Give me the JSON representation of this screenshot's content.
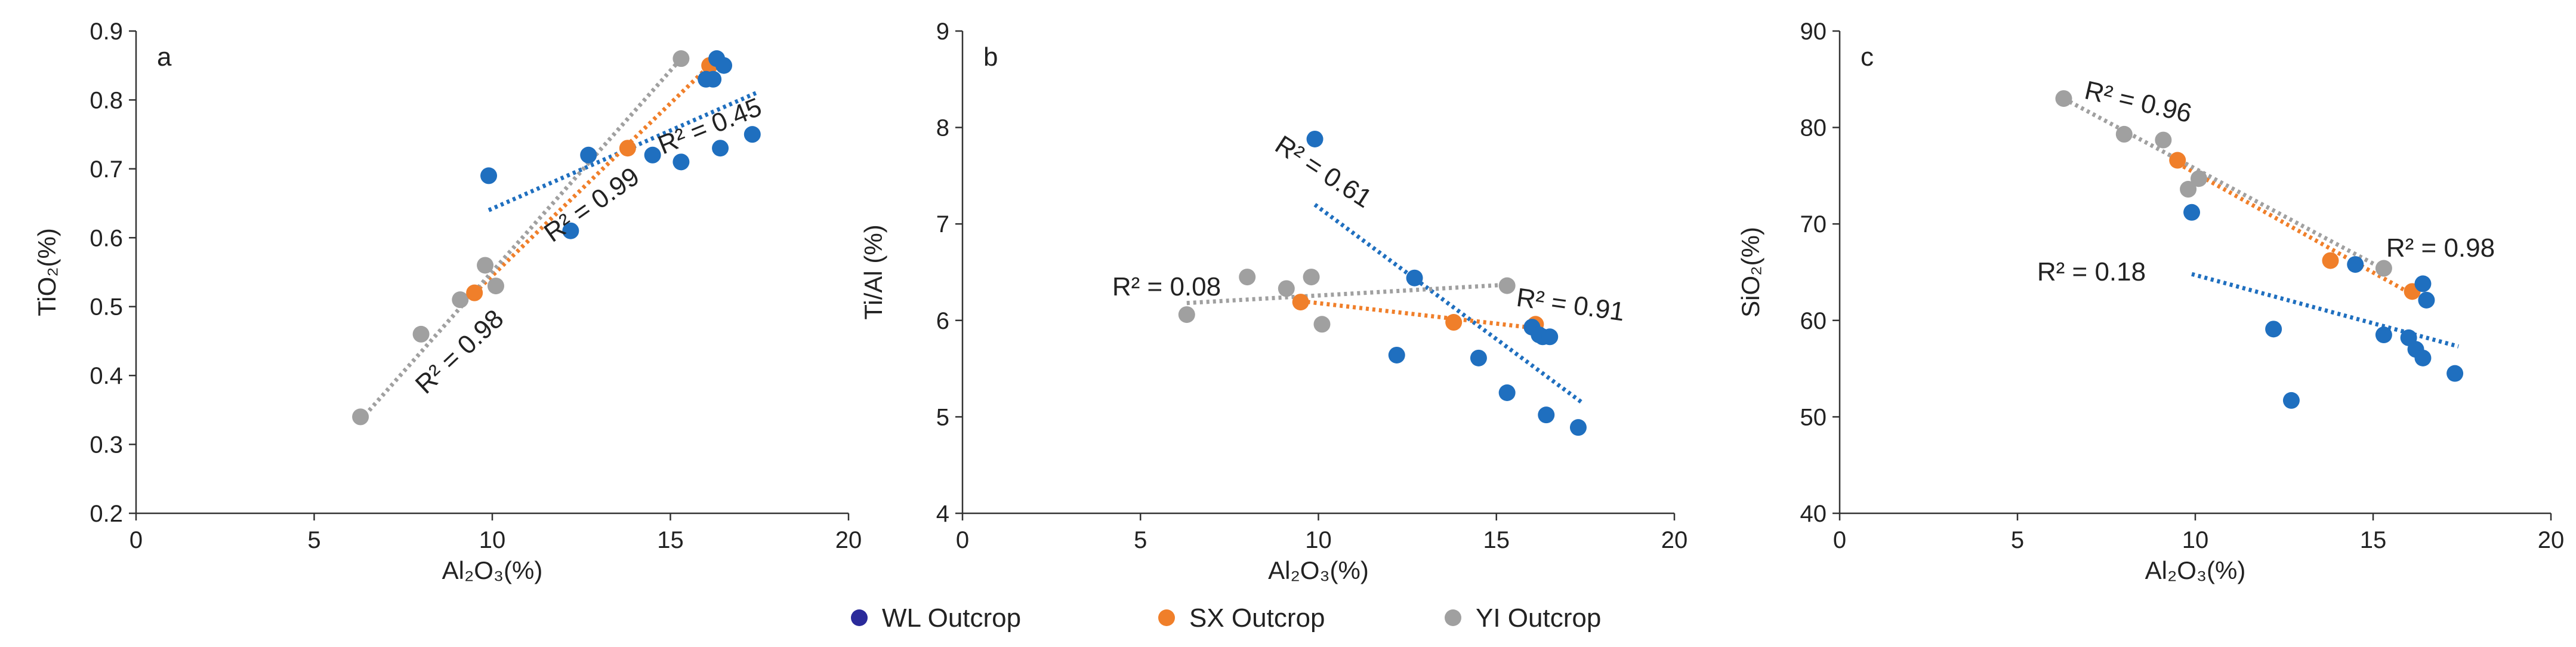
{
  "chart_data": [
    {
      "type": "scatter",
      "panel_label": "a",
      "xlabel": "Al₂O₃(%)",
      "ylabel": "TiO₂(%)",
      "xlim": [
        0,
        20
      ],
      "ylim": [
        0.2,
        0.9
      ],
      "xticks": [
        0,
        5,
        10,
        15,
        20
      ],
      "yticks": [
        0.2,
        0.3,
        0.4,
        0.5,
        0.6,
        0.7,
        0.8,
        0.9
      ],
      "ytick_decimals": 1,
      "series": [
        {
          "name": "WL Outcrop",
          "color": "#1f6fbf",
          "x": [
            9.9,
            12.7,
            12.2,
            14.5,
            15.3,
            16.0,
            16.2,
            16.3,
            16.4,
            16.5,
            17.3
          ],
          "y": [
            0.69,
            0.72,
            0.61,
            0.72,
            0.71,
            0.83,
            0.83,
            0.86,
            0.73,
            0.85,
            0.75
          ],
          "trend": {
            "x": [
              9.9,
              17.4
            ],
            "y": [
              0.64,
              0.81
            ],
            "r2": "R² = 0.45"
          }
        },
        {
          "name": "SX Outcrop",
          "color": "#f07f2a",
          "x": [
            9.5,
            13.8,
            16.1
          ],
          "y": [
            0.52,
            0.73,
            0.85
          ],
          "trend": {
            "x": [
              9.5,
              16.1
            ],
            "y": [
              0.52,
              0.85
            ],
            "r2": "R² = 0.99"
          }
        },
        {
          "name": "YI Outcrop",
          "color": "#a0a0a0",
          "x": [
            6.3,
            8.0,
            9.1,
            9.8,
            10.1,
            15.3
          ],
          "y": [
            0.34,
            0.46,
            0.51,
            0.56,
            0.53,
            0.86
          ],
          "trend": {
            "x": [
              6.3,
              15.3
            ],
            "y": [
              0.335,
              0.86
            ],
            "r2": "R² = 0.98"
          }
        }
      ]
    },
    {
      "type": "scatter",
      "panel_label": "b",
      "xlabel": "Al₂O₃(%)",
      "ylabel": "Ti/Al (%)",
      "xlim": [
        0,
        20
      ],
      "ylim": [
        4,
        9
      ],
      "xticks": [
        0,
        5,
        10,
        15,
        20
      ],
      "yticks": [
        4,
        5,
        6,
        7,
        8,
        9
      ],
      "ytick_decimals": 0,
      "series": [
        {
          "name": "WL Outcrop",
          "color": "#1f6fbf",
          "x": [
            9.9,
            12.2,
            12.7,
            14.5,
            15.3,
            16.0,
            16.2,
            16.3,
            16.4,
            16.5,
            17.3
          ],
          "y": [
            7.88,
            5.64,
            6.44,
            5.61,
            5.25,
            5.93,
            5.85,
            5.83,
            5.02,
            5.83,
            4.89
          ],
          "trend": {
            "x": [
              9.9,
              17.4
            ],
            "y": [
              7.2,
              5.15
            ],
            "r2": "R² = 0.61"
          }
        },
        {
          "name": "SX Outcrop",
          "color": "#f07f2a",
          "x": [
            9.5,
            13.8,
            16.1
          ],
          "y": [
            6.19,
            5.98,
            5.96
          ],
          "trend": {
            "x": [
              9.5,
              16.1
            ],
            "y": [
              6.2,
              5.92
            ],
            "r2": "R² = 0.91"
          }
        },
        {
          "name": "YI Outcrop",
          "color": "#a0a0a0",
          "x": [
            6.3,
            8.0,
            9.1,
            9.8,
            10.1,
            15.3
          ],
          "y": [
            6.06,
            6.45,
            6.33,
            6.45,
            5.96,
            6.36
          ],
          "trend": {
            "x": [
              6.3,
              15.3
            ],
            "y": [
              6.18,
              6.37
            ],
            "r2": "R² = 0.08"
          }
        }
      ]
    },
    {
      "type": "scatter",
      "panel_label": "c",
      "xlabel": "Al₂O₃(%)",
      "ylabel": "SiO₂(%)",
      "xlim": [
        0,
        20
      ],
      "ylim": [
        40,
        90
      ],
      "xticks": [
        0,
        5,
        10,
        15,
        20
      ],
      "yticks": [
        40,
        50,
        60,
        70,
        80,
        90
      ],
      "ytick_decimals": 0,
      "series": [
        {
          "name": "WL Outcrop",
          "color": "#1f6fbf",
          "x": [
            9.9,
            12.2,
            12.7,
            14.5,
            15.3,
            16.0,
            16.2,
            16.4,
            16.4,
            16.5,
            17.3
          ],
          "y": [
            71.2,
            59.1,
            51.7,
            65.8,
            58.5,
            58.2,
            57.0,
            63.8,
            56.1,
            62.1,
            54.5
          ],
          "trend": {
            "x": [
              9.9,
              17.4
            ],
            "y": [
              64.8,
              57.3
            ],
            "r2": "R² = 0.18"
          }
        },
        {
          "name": "SX Outcrop",
          "color": "#f07f2a",
          "x": [
            9.5,
            13.8,
            16.1
          ],
          "y": [
            76.6,
            66.2,
            63.0
          ],
          "trend": {
            "x": [
              9.5,
              16.1
            ],
            "y": [
              76.3,
              62.7
            ],
            "r2": "R² = 0.98"
          }
        },
        {
          "name": "YI Outcrop",
          "color": "#a0a0a0",
          "x": [
            6.3,
            8.0,
            9.1,
            9.8,
            10.1,
            15.3
          ],
          "y": [
            83.0,
            79.3,
            78.7,
            73.6,
            74.7,
            65.4
          ],
          "trend": {
            "x": [
              6.3,
              15.3
            ],
            "y": [
              83.0,
              65.3
            ],
            "r2": "R² = 0.96"
          }
        }
      ]
    }
  ],
  "legend": [
    {
      "label": "WL  Outcrop",
      "color": "#2a2a9a"
    },
    {
      "label": "SX  Outcrop",
      "color": "#f07f2a"
    },
    {
      "label": "YI Outcrop",
      "color": "#a0a0a0"
    }
  ]
}
